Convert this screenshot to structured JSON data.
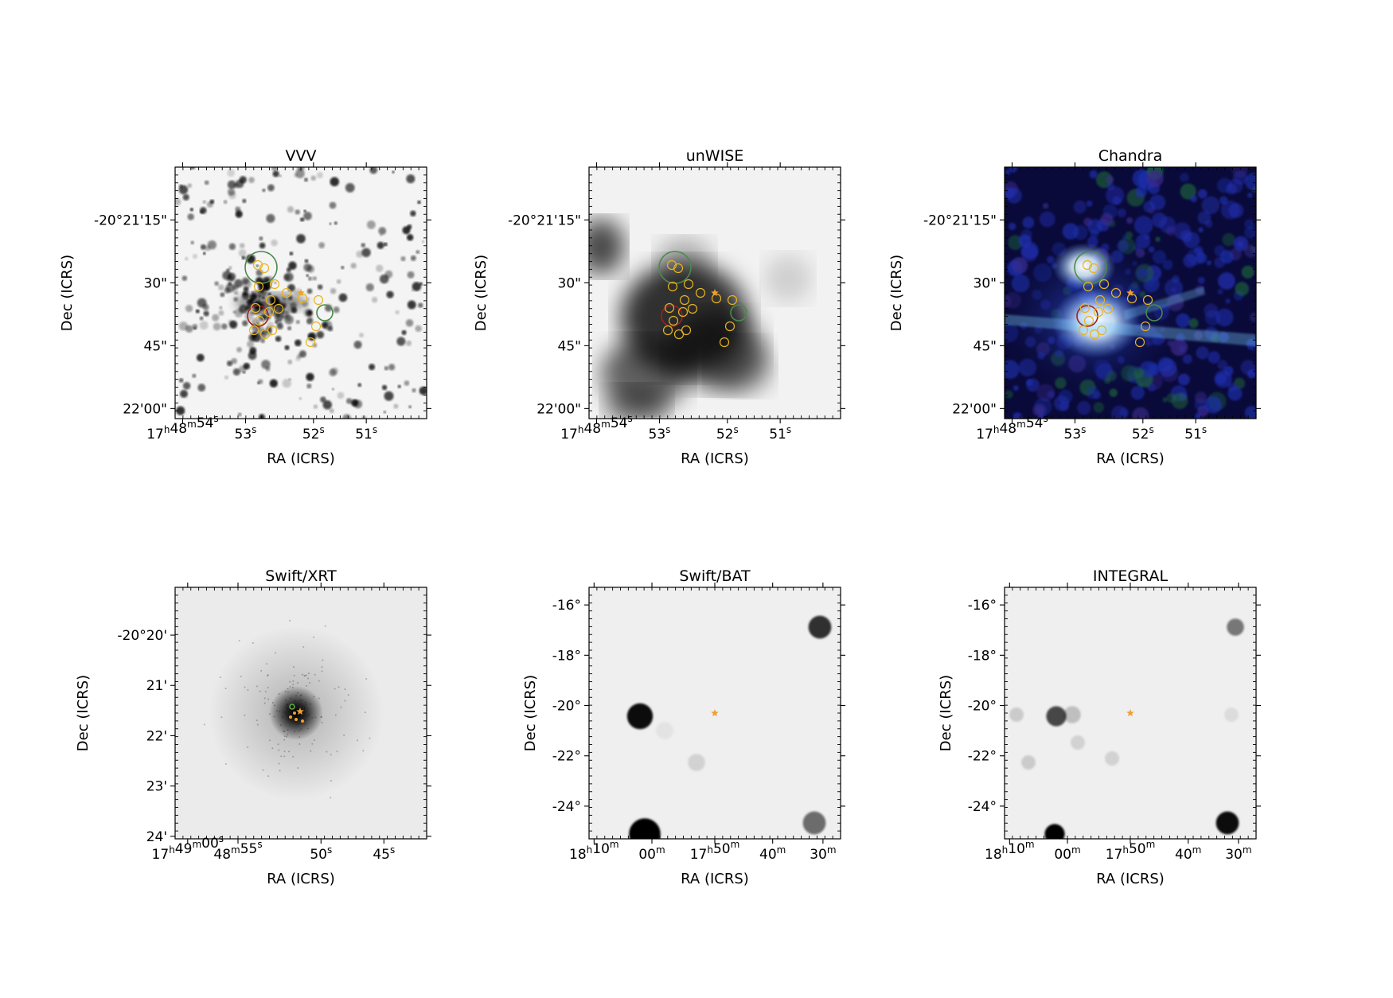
{
  "panels": [
    {
      "title": "VVV",
      "xlabel": "RA (ICRS)",
      "ylabel": "Dec (ICRS)",
      "xticks": [
        "17h48m54s",
        "53s",
        "52s",
        "51s"
      ],
      "yticks": [
        "-20°21'15\"",
        "30\"",
        "45\"",
        "22'00\""
      ],
      "image": "greyscale-starfield",
      "markers": [
        "green-circle",
        "red-circle",
        "yellow-circles",
        "orange-star"
      ]
    },
    {
      "title": "unWISE",
      "xlabel": "RA (ICRS)",
      "ylabel": "Dec (ICRS)",
      "xticks": [
        "17h48m54s",
        "53s",
        "52s",
        "51s"
      ],
      "yticks": [
        "-20°21'15\"",
        "30\"",
        "45\"",
        "22'00\""
      ],
      "image": "greyscale-diffuse",
      "markers": [
        "green-circle",
        "red-circle",
        "yellow-circles",
        "orange-star"
      ]
    },
    {
      "title": "Chandra",
      "xlabel": "RA (ICRS)",
      "ylabel": "Dec (ICRS)",
      "xticks": [
        "17h48m54s",
        "53s",
        "52s",
        "51s"
      ],
      "yticks": [
        "-20°21'15\"",
        "30\"",
        "45\"",
        "22'00\""
      ],
      "image": "rgb-xray",
      "markers": [
        "green-circle",
        "red-circle",
        "yellow-circles",
        "orange-star"
      ]
    },
    {
      "title": "Swift/XRT",
      "xlabel": "RA (ICRS)",
      "ylabel": "Dec (ICRS)",
      "xticks": [
        "17h49m00s",
        "48m55s",
        "50s",
        "45s"
      ],
      "yticks": [
        "-20°20'",
        "21'",
        "22'",
        "23'",
        "24'"
      ],
      "image": "greyscale-point-source",
      "markers": [
        "green-circle",
        "orange-star"
      ]
    },
    {
      "title": "Swift/BAT",
      "xlabel": "RA (ICRS)",
      "ylabel": "Dec (ICRS)",
      "xticks": [
        "18h10m",
        "00m",
        "17h50m",
        "40m",
        "30m"
      ],
      "yticks": [
        "-16°",
        "-18°",
        "-20°",
        "-22°",
        "-24°"
      ],
      "image": "greyscale-wide-field",
      "markers": [
        "orange-star"
      ]
    },
    {
      "title": "INTEGRAL",
      "xlabel": "RA (ICRS)",
      "ylabel": "Dec (ICRS)",
      "xticks": [
        "18h10m",
        "00m",
        "17h50m",
        "40m",
        "30m"
      ],
      "yticks": [
        "-16°",
        "-18°",
        "-20°",
        "-22°",
        "-24°"
      ],
      "image": "greyscale-wide-field",
      "markers": [
        "orange-star"
      ]
    }
  ],
  "colors": {
    "green_circle": "#4a8a4a",
    "red_circle": "#a02020",
    "yellow_circle": "#e6b422",
    "star": "#f0a030",
    "chandra_bg": "#0a0a3a"
  }
}
